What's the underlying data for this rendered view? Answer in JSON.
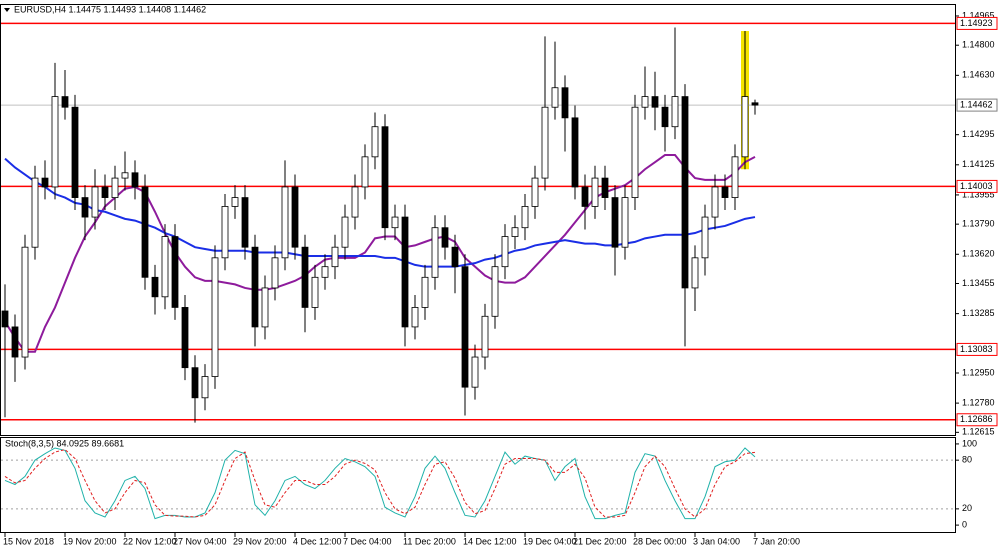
{
  "chart_data": [
    {
      "type": "candlestick",
      "title": "EURUSD,H4 1.14475 1.14493 1.14408 1.14462",
      "categories": [
        "15 Nov 2018",
        null,
        null,
        null,
        null,
        null,
        "19 Nov 20:00",
        null,
        null,
        null,
        null,
        null,
        "22 Nov 12:00",
        null,
        null,
        null,
        null,
        "27 Nov 04:00",
        null,
        null,
        null,
        null,
        null,
        "29 Nov 20:00",
        null,
        null,
        null,
        null,
        null,
        "4 Dec 12:00",
        null,
        null,
        null,
        null,
        "7 Dec 04:00",
        null,
        null,
        null,
        null,
        null,
        "11 Dec 20:00",
        null,
        null,
        null,
        null,
        null,
        "14 Dec 12:00",
        null,
        null,
        null,
        null,
        null,
        "19 Dec 04:00",
        null,
        null,
        null,
        null,
        "21 Dec 20:00",
        null,
        null,
        null,
        null,
        null,
        "28 Dec 00:00",
        null,
        null,
        null,
        null,
        null,
        "3 Jan 04:00",
        null,
        null,
        null,
        null,
        null,
        "7 Jan 20:00"
      ],
      "open": [
        1.133,
        1.1321,
        1.1304,
        1.1366,
        1.1405,
        1.14,
        1.1451,
        1.1445,
        1.1394,
        1.1383,
        1.14,
        1.1394,
        1.1405,
        1.1408,
        1.14,
        1.1349,
        1.1338,
        1.1372,
        1.1332,
        1.1298,
        1.1281,
        1.1293,
        1.136,
        1.1389,
        1.1394,
        1.1366,
        1.1321,
        1.1343,
        1.136,
        1.14,
        1.1366,
        1.1332,
        1.1349,
        1.1355,
        1.1366,
        1.1383,
        1.14,
        1.1417,
        1.1434,
        1.1377,
        1.1383,
        1.1321,
        1.1332,
        1.1349,
        1.1377,
        1.1366,
        1.1355,
        1.1287,
        1.1304,
        1.1327,
        1.1355,
        1.1372,
        1.1377,
        1.1389,
        1.1405,
        1.1445,
        1.1456,
        1.1439,
        1.14,
        1.1389,
        1.1405,
        1.1394,
        1.1366,
        1.1394,
        1.1445,
        1.1451,
        1.1445,
        1.1434,
        1.1451,
        1.1343,
        1.136,
        1.1383,
        1.14,
        1.1394,
        1.1417,
        1.14475
      ],
      "high": [
        1.1345,
        1.1328,
        1.1373,
        1.1412,
        1.1415,
        1.147,
        1.1466,
        1.1452,
        1.1401,
        1.141,
        1.1407,
        1.1412,
        1.142,
        1.1415,
        1.1407,
        1.1356,
        1.1379,
        1.1379,
        1.1339,
        1.1305,
        1.13,
        1.1367,
        1.1396,
        1.1401,
        1.1401,
        1.1373,
        1.135,
        1.1367,
        1.1415,
        1.1407,
        1.1373,
        1.1356,
        1.1362,
        1.1373,
        1.139,
        1.1407,
        1.1424,
        1.1442,
        1.1441,
        1.139,
        1.139,
        1.1339,
        1.1356,
        1.1384,
        1.1384,
        1.1373,
        1.1362,
        1.1311,
        1.1334,
        1.1362,
        1.1379,
        1.1384,
        1.1396,
        1.1412,
        1.1485,
        1.1482,
        1.1463,
        1.1446,
        1.1407,
        1.1412,
        1.1412,
        1.1401,
        1.1401,
        1.1452,
        1.1468,
        1.1465,
        1.1452,
        1.149,
        1.1458,
        1.1367,
        1.139,
        1.1407,
        1.1407,
        1.1424,
        1.1488,
        1.14493
      ],
      "low": [
        1.127,
        1.129,
        1.1297,
        1.1359,
        1.1393,
        1.1393,
        1.1438,
        1.1387,
        1.137,
        1.1376,
        1.1387,
        1.1387,
        1.1398,
        1.1393,
        1.1342,
        1.1328,
        1.1331,
        1.1325,
        1.1291,
        1.1267,
        1.1274,
        1.1286,
        1.1353,
        1.1382,
        1.1359,
        1.131,
        1.1314,
        1.1336,
        1.1353,
        1.1359,
        1.1318,
        1.1325,
        1.1342,
        1.1348,
        1.1359,
        1.1376,
        1.1393,
        1.141,
        1.137,
        1.137,
        1.131,
        1.1314,
        1.1325,
        1.1342,
        1.1359,
        1.134,
        1.1271,
        1.128,
        1.1297,
        1.132,
        1.1348,
        1.1365,
        1.137,
        1.1382,
        1.1398,
        1.1438,
        1.142,
        1.1393,
        1.1376,
        1.1382,
        1.1387,
        1.135,
        1.1359,
        1.1387,
        1.1438,
        1.1432,
        1.142,
        1.1427,
        1.131,
        1.133,
        1.135,
        1.1376,
        1.1387,
        1.1387,
        1.141,
        1.14408
      ],
      "close": [
        1.1321,
        1.1304,
        1.1366,
        1.1405,
        1.14,
        1.1451,
        1.1445,
        1.1394,
        1.1383,
        1.14,
        1.1394,
        1.1405,
        1.1408,
        1.14,
        1.1349,
        1.1338,
        1.1372,
        1.1332,
        1.1298,
        1.1281,
        1.1293,
        1.136,
        1.1389,
        1.1394,
        1.1366,
        1.1321,
        1.1343,
        1.136,
        1.14,
        1.1366,
        1.1332,
        1.1349,
        1.1355,
        1.1366,
        1.1383,
        1.14,
        1.1417,
        1.1434,
        1.1377,
        1.1383,
        1.1321,
        1.1332,
        1.1349,
        1.1377,
        1.1366,
        1.1355,
        1.1287,
        1.1304,
        1.1327,
        1.1355,
        1.1372,
        1.1377,
        1.1389,
        1.1405,
        1.1445,
        1.1456,
        1.1439,
        1.14,
        1.1389,
        1.1405,
        1.1394,
        1.1366,
        1.1394,
        1.1445,
        1.1451,
        1.1445,
        1.1434,
        1.1451,
        1.1343,
        1.136,
        1.1383,
        1.14,
        1.1394,
        1.1417,
        1.1451,
        1.14462
      ],
      "up_color": "#ffffff",
      "down_color": "#000000",
      "wick_color": "#000000",
      "highlight_color": "#f5e400",
      "overlays": [
        {
          "color": "#8e1b9c",
          "values": [
            1.1324,
            1.1315,
            1.1307,
            1.1307,
            1.1321,
            1.1332,
            1.1346,
            1.136,
            1.1372,
            1.138,
            1.1389,
            1.1394,
            1.1399,
            1.14,
            1.1397,
            1.1386,
            1.1374,
            1.1363,
            1.1355,
            1.1349,
            1.1347,
            1.1347,
            1.1346,
            1.1345,
            1.1343,
            1.1342,
            1.1342,
            1.1343,
            1.1345,
            1.1347,
            1.135,
            1.1355,
            1.1359,
            1.136,
            1.136,
            1.136,
            1.1363,
            1.1371,
            1.1372,
            1.1372,
            1.1366,
            1.1367,
            1.1369,
            1.1371,
            1.1372,
            1.1369,
            1.136,
            1.1355,
            1.135,
            1.1347,
            1.1346,
            1.1346,
            1.1349,
            1.1355,
            1.1361,
            1.1367,
            1.1373,
            1.138,
            1.1387,
            1.1394,
            1.1397,
            1.1399,
            1.1401,
            1.1405,
            1.141,
            1.1414,
            1.1418,
            1.1418,
            1.1411,
            1.1405,
            1.1404,
            1.1404,
            1.1404,
            1.1408,
            1.1414,
            1.1417
          ]
        },
        {
          "color": "#1a2ee6",
          "values": [
            1.1416,
            1.1411,
            1.1407,
            1.1403,
            1.14,
            1.1396,
            1.1394,
            1.1391,
            1.139,
            1.1387,
            1.1386,
            1.1384,
            1.1382,
            1.1381,
            1.1379,
            1.1377,
            1.1374,
            1.1372,
            1.1369,
            1.1366,
            1.1365,
            1.1364,
            1.1364,
            1.1364,
            1.1364,
            1.1363,
            1.1363,
            1.1363,
            1.1363,
            1.1362,
            1.1361,
            1.1361,
            1.1361,
            1.1361,
            1.1361,
            1.1361,
            1.1361,
            1.1361,
            1.136,
            1.136,
            1.1358,
            1.1356,
            1.1355,
            1.1355,
            1.1355,
            1.1355,
            1.1356,
            1.1357,
            1.1359,
            1.136,
            1.1362,
            1.1364,
            1.1365,
            1.1367,
            1.1368,
            1.1369,
            1.137,
            1.1369,
            1.1368,
            1.1368,
            1.1367,
            1.1367,
            1.1368,
            1.1369,
            1.1371,
            1.1372,
            1.1373,
            1.1373,
            1.1373,
            1.1374,
            1.1376,
            1.1377,
            1.1378,
            1.138,
            1.1382,
            1.1383
          ]
        }
      ],
      "levels": [
        {
          "value": 1.14923,
          "color": "#ff0000"
        },
        {
          "value": 1.14003,
          "color": "#ff0000"
        },
        {
          "value": 1.13083,
          "color": "#ff0000"
        },
        {
          "value": 1.12686,
          "color": "#ff0000"
        }
      ],
      "ylim": [
        1.126,
        1.1501
      ],
      "yticks": [
        1.12615,
        {
          "value": 1.1278,
          "label": "1.12780"
        },
        {
          "value": 1.1295,
          "label": "1.12950"
        },
        1.13285,
        1.13455,
        {
          "value": 1.1362,
          "label": "1.13620"
        },
        {
          "value": 1.1379,
          "label": "1.13790"
        },
        1.13955,
        1.14125,
        1.14295,
        {
          "value": 1.1463,
          "label": "1.14630"
        },
        {
          "value": 1.148,
          "label": "1.14800"
        },
        1.14965
      ]
    },
    {
      "type": "line",
      "title": "Stoch(8,3,5) 84.0925 89.6681",
      "series": [
        {
          "color": "#20b2aa",
          "dash": false,
          "values": [
            55,
            50,
            60,
            80,
            88,
            95,
            92,
            70,
            30,
            15,
            10,
            30,
            55,
            60,
            45,
            8,
            12,
            12,
            10,
            10,
            15,
            40,
            80,
            92,
            88,
            25,
            12,
            30,
            55,
            60,
            50,
            45,
            55,
            70,
            82,
            78,
            72,
            60,
            22,
            15,
            10,
            35,
            70,
            85,
            70,
            40,
            12,
            10,
            30,
            60,
            90,
            75,
            85,
            82,
            80,
            55,
            72,
            82,
            35,
            8,
            8,
            12,
            15,
            65,
            88,
            85,
            55,
            30,
            8,
            8,
            35,
            72,
            78,
            80,
            95,
            84.0925
          ]
        },
        {
          "color": "#e02020",
          "dash": true,
          "values": [
            60,
            52,
            55,
            70,
            82,
            90,
            93,
            82,
            55,
            30,
            15,
            20,
            40,
            55,
            52,
            25,
            12,
            11,
            11,
            10,
            12,
            25,
            55,
            82,
            90,
            55,
            25,
            22,
            40,
            55,
            55,
            50,
            50,
            60,
            75,
            80,
            76,
            68,
            40,
            20,
            14,
            22,
            50,
            75,
            78,
            58,
            28,
            14,
            18,
            45,
            75,
            82,
            82,
            82,
            80,
            65,
            65,
            75,
            58,
            22,
            10,
            10,
            12,
            40,
            72,
            85,
            72,
            45,
            20,
            10,
            20,
            50,
            72,
            78,
            88,
            89.6681
          ]
        }
      ],
      "levels": [
        20,
        80
      ],
      "ylim": [
        -8.5,
        107.3
      ],
      "yticks": [
        0,
        20,
        80,
        100
      ]
    }
  ]
}
